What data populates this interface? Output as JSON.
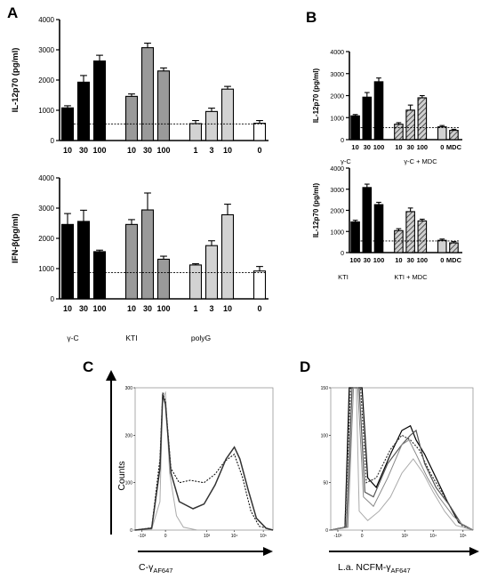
{
  "figure": {
    "panels": [
      "A",
      "B",
      "C",
      "D"
    ],
    "groups_A": [
      "γ-C",
      "KTI",
      "polyG"
    ],
    "groups_B1": [
      "γ-C",
      "γ-C + MDC"
    ],
    "groups_B2": [
      "KTI",
      "KTI + MDC"
    ],
    "flow_C": {
      "xlabel": "C-γ",
      "xlabel_sub": "AF647",
      "ylabel": "Counts"
    },
    "flow_D": {
      "xlabel": "L.a. NCFM-γ",
      "xlabel_sub": "AF647"
    }
  },
  "colors": {
    "black": "#000000",
    "dark_gray": "#9a9a9a",
    "light_gray": "#d2d2d2",
    "white": "#ffffff",
    "hatch": "#555555"
  },
  "chart_data": [
    {
      "id": "A-top",
      "type": "bar",
      "ylabel": "IL-12p70 (pg/ml)",
      "ylim": [
        0,
        4000
      ],
      "yticks": [
        0,
        1000,
        2000,
        3000,
        4000
      ],
      "baseline": 550,
      "categories": [
        "10",
        "30",
        "100",
        "10",
        "30",
        "100",
        "1",
        "3",
        "10",
        "0"
      ],
      "values": [
        1080,
        1930,
        2630,
        1460,
        3070,
        2300,
        560,
        960,
        1700,
        570
      ],
      "errors": [
        70,
        220,
        190,
        80,
        150,
        100,
        100,
        110,
        90,
        90
      ],
      "fills": [
        "black",
        "black",
        "black",
        "dark_gray",
        "dark_gray",
        "dark_gray",
        "light_gray",
        "light_gray",
        "light_gray",
        "white"
      ]
    },
    {
      "id": "A-bottom",
      "type": "bar",
      "ylabel": "IFN-β(pg/ml)",
      "ylim": [
        0,
        4000
      ],
      "yticks": [
        0,
        1000,
        2000,
        3000,
        4000
      ],
      "baseline": 870,
      "categories": [
        "10",
        "30",
        "100",
        "10",
        "30",
        "100",
        "1",
        "3",
        "10",
        "0"
      ],
      "values": [
        2460,
        2560,
        1560,
        2460,
        2940,
        1310,
        1120,
        1760,
        2780,
        920
      ],
      "errors": [
        360,
        370,
        50,
        160,
        560,
        100,
        40,
        160,
        350,
        150
      ],
      "fills": [
        "black",
        "black",
        "black",
        "dark_gray",
        "dark_gray",
        "dark_gray",
        "light_gray",
        "light_gray",
        "light_gray",
        "white"
      ]
    },
    {
      "id": "B-top",
      "type": "bar",
      "ylabel": "IL-12p70 (pg/ml)",
      "ylim": [
        0,
        4000
      ],
      "yticks": [
        0,
        1000,
        2000,
        3000,
        4000
      ],
      "baseline": 550,
      "categories": [
        "10",
        "30",
        "100",
        "10",
        "30",
        "100",
        "0",
        "MDC"
      ],
      "values": [
        1080,
        1930,
        2630,
        700,
        1340,
        1900,
        580,
        420
      ],
      "errors": [
        60,
        210,
        170,
        70,
        230,
        100,
        60,
        50
      ],
      "fills": [
        "black",
        "black",
        "black",
        "hatch",
        "hatch",
        "hatch",
        "light_gray",
        "hatch"
      ]
    },
    {
      "id": "B-bottom",
      "type": "bar",
      "ylabel": "IL-12p70 (pg/ml)",
      "ylim": [
        0,
        4000
      ],
      "yticks": [
        0,
        1000,
        2000,
        3000,
        4000
      ],
      "baseline": 550,
      "categories": [
        "100",
        "30",
        "100",
        "10",
        "30",
        "100",
        "0",
        "MDC"
      ],
      "values": [
        1450,
        3080,
        2270,
        1040,
        1940,
        1500,
        580,
        460
      ],
      "errors": [
        80,
        160,
        110,
        90,
        170,
        80,
        60,
        60
      ],
      "fills": [
        "black",
        "black",
        "black",
        "hatch",
        "hatch",
        "hatch",
        "light_gray",
        "hatch"
      ]
    },
    {
      "id": "C",
      "type": "line",
      "xlabel": "C-γAF647",
      "ylabel": "Counts",
      "xscale": "biexponential",
      "xticks": [
        "-10³",
        "0",
        "10³",
        "10⁴",
        "10⁵"
      ],
      "yticks": [
        0,
        100,
        200,
        300
      ],
      "ylim": [
        0,
        300
      ]
    },
    {
      "id": "D",
      "type": "line",
      "xlabel": "L.a. NCFM-γAF647",
      "xscale": "biexponential",
      "xticks": [
        "-10³",
        "0",
        "10³",
        "10⁴",
        "10⁵"
      ],
      "yticks": [
        0,
        50,
        100,
        150
      ],
      "ylim": [
        0,
        150
      ]
    }
  ]
}
